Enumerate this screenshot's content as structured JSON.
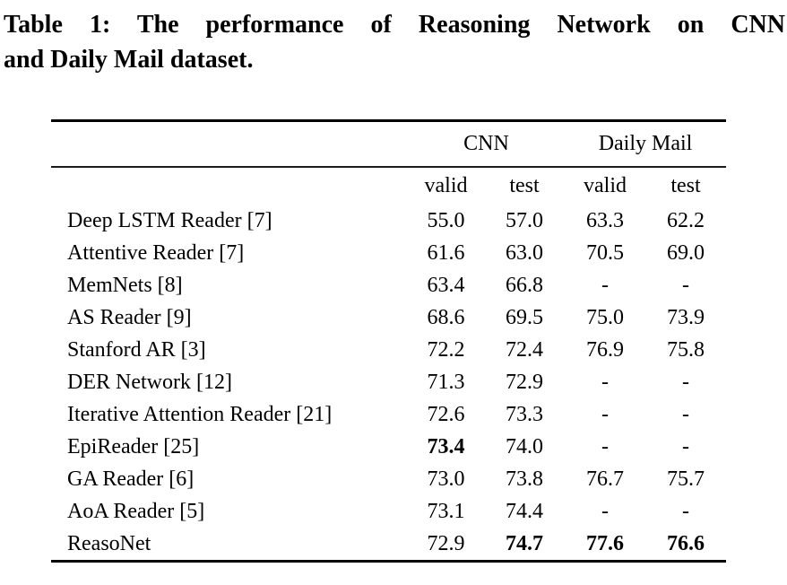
{
  "caption": {
    "line1": "Table 1: The performance of Reasoning Network on CNN",
    "line2": "and Daily Mail dataset."
  },
  "table": {
    "col_groups": [
      {
        "label": "CNN",
        "span": 2
      },
      {
        "label": "Daily Mail",
        "span": 2
      }
    ],
    "sub_headers": [
      "valid",
      "test",
      "valid",
      "test"
    ],
    "rows": [
      {
        "model": "Deep LSTM Reader [7]",
        "values": [
          {
            "v": "55.0",
            "b": false
          },
          {
            "v": "57.0",
            "b": false
          },
          {
            "v": "63.3",
            "b": false
          },
          {
            "v": "62.2",
            "b": false
          }
        ]
      },
      {
        "model": "Attentive Reader [7]",
        "values": [
          {
            "v": "61.6",
            "b": false
          },
          {
            "v": "63.0",
            "b": false
          },
          {
            "v": "70.5",
            "b": false
          },
          {
            "v": "69.0",
            "b": false
          }
        ]
      },
      {
        "model": "MemNets [8]",
        "values": [
          {
            "v": "63.4",
            "b": false
          },
          {
            "v": "66.8",
            "b": false
          },
          {
            "v": "-",
            "b": false
          },
          {
            "v": "-",
            "b": false
          }
        ]
      },
      {
        "model": "AS Reader [9]",
        "values": [
          {
            "v": "68.6",
            "b": false
          },
          {
            "v": "69.5",
            "b": false
          },
          {
            "v": "75.0",
            "b": false
          },
          {
            "v": "73.9",
            "b": false
          }
        ]
      },
      {
        "model": "Stanford AR [3]",
        "values": [
          {
            "v": "72.2",
            "b": false
          },
          {
            "v": "72.4",
            "b": false
          },
          {
            "v": "76.9",
            "b": false
          },
          {
            "v": "75.8",
            "b": false
          }
        ]
      },
      {
        "model": "DER Network [12]",
        "values": [
          {
            "v": "71.3",
            "b": false
          },
          {
            "v": "72.9",
            "b": false
          },
          {
            "v": "-",
            "b": false
          },
          {
            "v": "-",
            "b": false
          }
        ]
      },
      {
        "model": "Iterative Attention Reader [21]",
        "values": [
          {
            "v": "72.6",
            "b": false
          },
          {
            "v": "73.3",
            "b": false
          },
          {
            "v": "-",
            "b": false
          },
          {
            "v": "-",
            "b": false
          }
        ]
      },
      {
        "model": "EpiReader [25]",
        "values": [
          {
            "v": "73.4",
            "b": true
          },
          {
            "v": "74.0",
            "b": false
          },
          {
            "v": "-",
            "b": false
          },
          {
            "v": "-",
            "b": false
          }
        ]
      },
      {
        "model": "GA Reader [6]",
        "values": [
          {
            "v": "73.0",
            "b": false
          },
          {
            "v": "73.8",
            "b": false
          },
          {
            "v": "76.7",
            "b": false
          },
          {
            "v": "75.7",
            "b": false
          }
        ]
      },
      {
        "model": "AoA Reader [5]",
        "values": [
          {
            "v": "73.1",
            "b": false
          },
          {
            "v": "74.4",
            "b": false
          },
          {
            "v": "-",
            "b": false
          },
          {
            "v": "-",
            "b": false
          }
        ]
      },
      {
        "model": "ReasoNet",
        "values": [
          {
            "v": "72.9",
            "b": false
          },
          {
            "v": "74.7",
            "b": true
          },
          {
            "v": "77.6",
            "b": true
          },
          {
            "v": "76.6",
            "b": true
          }
        ]
      }
    ]
  }
}
